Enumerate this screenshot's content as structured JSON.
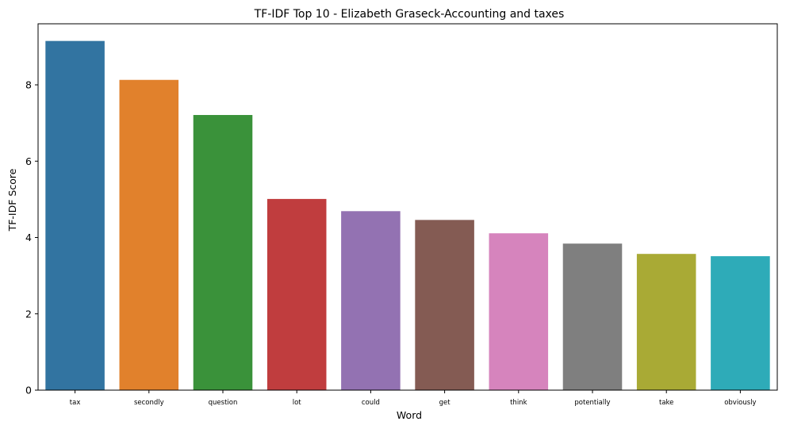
{
  "chart_data": {
    "type": "bar",
    "title": "TF-IDF Top 10 - Elizabeth Graseck-Accounting and taxes",
    "xlabel": "Word",
    "ylabel": "TF-IDF Score",
    "categories": [
      "tax",
      "secondly",
      "question",
      "lot",
      "could",
      "get",
      "think",
      "potentially",
      "take",
      "obviously"
    ],
    "values": [
      9.15,
      8.13,
      7.21,
      5.01,
      4.69,
      4.46,
      4.11,
      3.84,
      3.57,
      3.51
    ],
    "colors": [
      "#3274a1",
      "#e1812c",
      "#3a923a",
      "#c03d3e",
      "#9372b2",
      "#845b53",
      "#d684bd",
      "#7f7f7f",
      "#a9aa35",
      "#2eabb8"
    ],
    "ylim": [
      0,
      9.6
    ],
    "yticks": [
      0,
      2,
      4,
      6,
      8
    ],
    "grid": false,
    "legend": "none"
  }
}
